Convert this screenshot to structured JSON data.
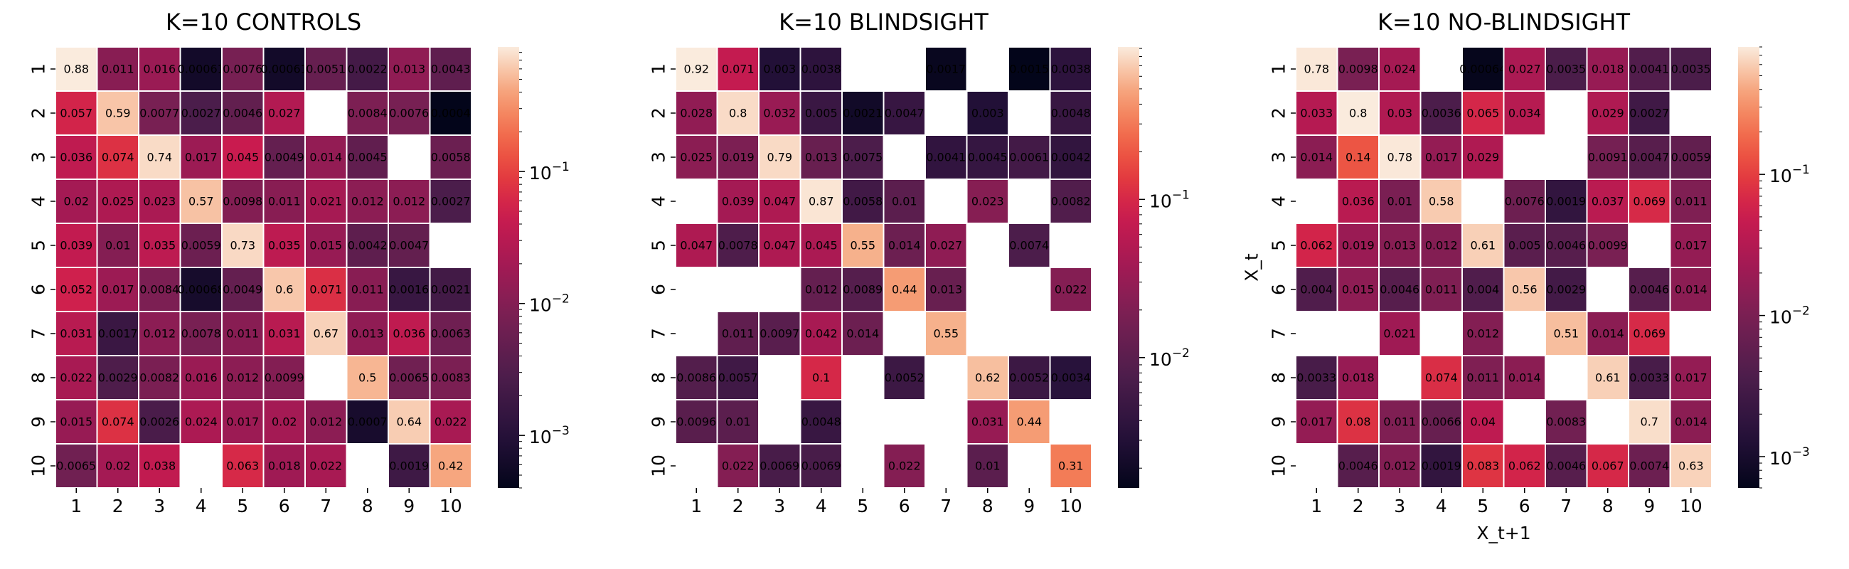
{
  "chart_data": [
    {
      "type": "heatmap",
      "title": "K=10 CONTROLS",
      "xlabel": "",
      "ylabel": "",
      "x_ticks": [
        "1",
        "2",
        "3",
        "4",
        "5",
        "6",
        "7",
        "8",
        "9",
        "10"
      ],
      "y_ticks": [
        "1",
        "2",
        "3",
        "4",
        "5",
        "6",
        "7",
        "8",
        "9",
        "10"
      ],
      "color_scale": "log",
      "colormap": "rocket",
      "colorbar": {
        "vmin": 0.0004,
        "vmax": 0.88,
        "tick_labels": [
          "10^-3",
          "10^-2",
          "10^-1"
        ],
        "tick_values": [
          0.001,
          0.01,
          0.1
        ]
      },
      "labels": [
        [
          "0.88",
          "0.011",
          "0.016",
          "0.00061",
          "0.0076",
          "0.00061",
          "0.0051",
          "0.0022",
          "0.013",
          "0.0043"
        ],
        [
          "0.057",
          "0.59",
          "0.0077",
          "0.0027",
          "0.0046",
          "0.027",
          "",
          "0.0084",
          "0.0076",
          "0.0004"
        ],
        [
          "0.036",
          "0.074",
          "0.74",
          "0.017",
          "0.045",
          "0.0049",
          "0.014",
          "0.0045",
          "",
          "0.0058"
        ],
        [
          "0.02",
          "0.025",
          "0.023",
          "0.57",
          "0.0098",
          "0.011",
          "0.021",
          "0.012",
          "0.012",
          "0.0027"
        ],
        [
          "0.039",
          "0.01",
          "0.035",
          "0.0059",
          "0.73",
          "0.035",
          "0.015",
          "0.0042",
          "0.0047",
          ""
        ],
        [
          "0.052",
          "0.017",
          "0.0084",
          "0.00068",
          "0.0049",
          "0.6",
          "0.071",
          "0.011",
          "0.0016",
          "0.0021"
        ],
        [
          "0.031",
          "0.0017",
          "0.012",
          "0.0078",
          "0.011",
          "0.031",
          "0.67",
          "0.013",
          "0.036",
          "0.0063"
        ],
        [
          "0.022",
          "0.0029",
          "0.0082",
          "0.016",
          "0.012",
          "0.0099",
          "",
          "0.5",
          "0.0065",
          "0.0083"
        ],
        [
          "0.015",
          "0.074",
          "0.0026",
          "0.024",
          "0.017",
          "0.02",
          "0.012",
          "0.0007",
          "0.64",
          "0.022"
        ],
        [
          "0.0065",
          "0.02",
          "0.038",
          "",
          "0.063",
          "0.018",
          "0.022",
          "",
          "0.0019",
          "0.42"
        ]
      ]
    },
    {
      "type": "heatmap",
      "title": "K=10 BLINDSIGHT",
      "xlabel": "",
      "ylabel": "",
      "x_ticks": [
        "1",
        "2",
        "3",
        "4",
        "5",
        "6",
        "7",
        "8",
        "9",
        "10"
      ],
      "y_ticks": [
        "1",
        "2",
        "3",
        "4",
        "5",
        "6",
        "7",
        "8",
        "9",
        "10"
      ],
      "color_scale": "log",
      "colormap": "rocket",
      "colorbar": {
        "vmin": 0.0015,
        "vmax": 0.92,
        "tick_labels": [
          "10^-2",
          "10^-1"
        ],
        "tick_values": [
          0.01,
          0.1
        ]
      },
      "labels": [
        [
          "0.92",
          "0.071",
          "0.003",
          "0.0038",
          "",
          "",
          "0.0017",
          "",
          "0.0015",
          "0.0038"
        ],
        [
          "0.028",
          "0.8",
          "0.032",
          "0.005",
          "0.0021",
          "0.0047",
          "",
          "0.003",
          "",
          "0.0048"
        ],
        [
          "0.025",
          "0.019",
          "0.79",
          "0.013",
          "0.0075",
          "",
          "0.0041",
          "0.0045",
          "0.0061",
          "0.0042"
        ],
        [
          "",
          "0.039",
          "0.047",
          "0.87",
          "0.0058",
          "0.01",
          "",
          "0.023",
          "",
          "0.0082"
        ],
        [
          "0.047",
          "0.0078",
          "0.047",
          "0.045",
          "0.55",
          "0.014",
          "0.027",
          "",
          "0.0074",
          ""
        ],
        [
          "",
          "",
          "",
          "0.012",
          "0.0089",
          "0.44",
          "0.013",
          "",
          "",
          "0.022"
        ],
        [
          "",
          "0.011",
          "0.0097",
          "0.042",
          "0.014",
          "",
          "0.55",
          "",
          "",
          ""
        ],
        [
          "0.0086",
          "0.0057",
          "",
          "0.1",
          "",
          "0.0052",
          "",
          "0.62",
          "0.0052",
          "0.0034"
        ],
        [
          "0.0096",
          "0.01",
          "",
          "0.0048",
          "",
          "",
          "",
          "0.031",
          "0.44",
          ""
        ],
        [
          "",
          "0.022",
          "0.0069",
          "0.0069",
          "",
          "0.022",
          "",
          "0.01",
          "",
          "0.31"
        ]
      ]
    },
    {
      "type": "heatmap",
      "title": "K=10 NO-BLINDSIGHT",
      "xlabel": "X_t+1",
      "ylabel": "X_t",
      "x_ticks": [
        "1",
        "2",
        "3",
        "4",
        "5",
        "6",
        "7",
        "8",
        "9",
        "10"
      ],
      "y_ticks": [
        "1",
        "2",
        "3",
        "4",
        "5",
        "6",
        "7",
        "8",
        "9",
        "10"
      ],
      "color_scale": "log",
      "colormap": "rocket",
      "colorbar": {
        "vmin": 0.0006,
        "vmax": 0.8,
        "tick_labels": [
          "10^-3",
          "10^-2",
          "10^-1"
        ],
        "tick_values": [
          0.001,
          0.01,
          0.1
        ]
      },
      "labels": [
        [
          "0.78",
          "0.0098",
          "0.024",
          "",
          "0.00064",
          "0.027",
          "0.0035",
          "0.018",
          "0.0041",
          "0.0035"
        ],
        [
          "0.033",
          "0.8",
          "0.03",
          "0.0036",
          "0.065",
          "0.034",
          "",
          "0.029",
          "0.0027",
          ""
        ],
        [
          "0.014",
          "0.14",
          "0.78",
          "0.017",
          "0.029",
          "",
          "",
          "0.0091",
          "0.0047",
          "0.0059"
        ],
        [
          "",
          "0.036",
          "0.01",
          "0.58",
          "",
          "0.0076",
          "0.0019",
          "0.037",
          "0.069",
          "0.011"
        ],
        [
          "0.062",
          "0.019",
          "0.013",
          "0.012",
          "0.61",
          "0.005",
          "0.0046",
          "0.0099",
          "",
          "0.017"
        ],
        [
          "0.004",
          "0.015",
          "0.0046",
          "0.011",
          "0.004",
          "0.56",
          "0.0029",
          "",
          "0.0046",
          "0.014"
        ],
        [
          "",
          "",
          "0.021",
          "",
          "0.012",
          "",
          "0.51",
          "0.014",
          "0.069",
          ""
        ],
        [
          "0.0033",
          "0.018",
          "",
          "0.074",
          "0.011",
          "0.014",
          "",
          "0.61",
          "0.0033",
          "0.017"
        ],
        [
          "0.017",
          "0.08",
          "0.011",
          "0.0066",
          "0.04",
          "",
          "0.0083",
          "",
          "0.7",
          "0.014"
        ],
        [
          "",
          "0.0046",
          "0.012",
          "0.0019",
          "0.083",
          "0.062",
          "0.0046",
          "0.067",
          "0.0074",
          "0.63"
        ]
      ]
    }
  ]
}
